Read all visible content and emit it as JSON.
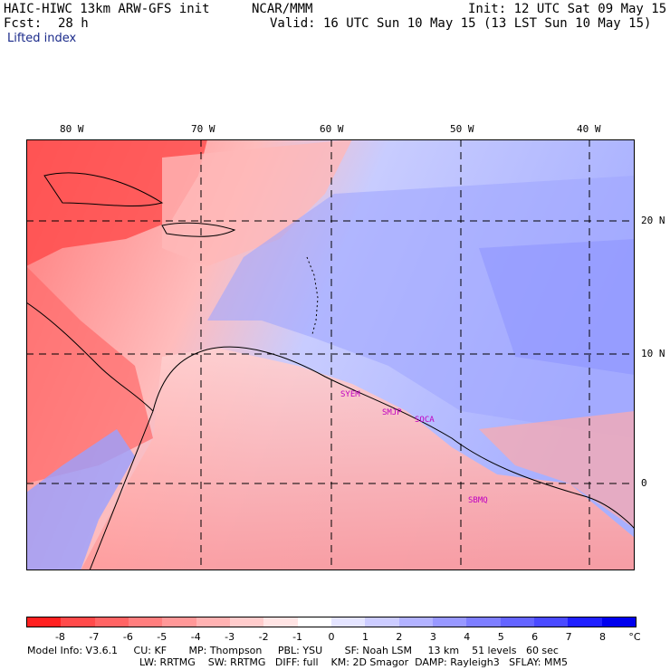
{
  "header": {
    "model": "HAIC-HIWC 13km ARW-GFS init",
    "org": "NCAR/MMM",
    "init": "Init: 12 UTC Sat 09 May 15",
    "fcst_label": "Fcst:",
    "fcst_value": "28 h",
    "valid": "Valid: 16 UTC Sun 10 May 15 (13 LST Sun 10 May 15)",
    "field": "Lifted index"
  },
  "map": {
    "lon_labels": [
      "80 W",
      "70 W",
      "60 W",
      "50 W",
      "40 W"
    ],
    "lat_labels": [
      "20 N",
      "10 N",
      "0"
    ],
    "stations": [
      "SYEM",
      "SMJP",
      "SOCA",
      "SBMQ"
    ]
  },
  "colorbar": {
    "ticks": [
      "-8",
      "-7",
      "-6",
      "-5",
      "-4",
      "-3",
      "-2",
      "-1",
      "0",
      "1",
      "2",
      "3",
      "4",
      "5",
      "6",
      "7",
      "8"
    ],
    "unit": "°C",
    "colors": [
      "#ff2020",
      "#ff4a4a",
      "#ff6464",
      "#ff7e7e",
      "#ff9898",
      "#ffb2b2",
      "#ffcccc",
      "#ffe4e4",
      "#ffffff",
      "#e4e4ff",
      "#ccccff",
      "#b2b2ff",
      "#9898ff",
      "#7e7eff",
      "#6464ff",
      "#4a4aff",
      "#2020ff",
      "#0000ee"
    ]
  },
  "model_info": {
    "line1": "Model Info: V3.6.1     CU: KF       MP: Thompson     PBL: YSU       SF: Noah LSM     13 km    51 levels   60 sec",
    "line2": "LW: RRTMG    SW: RRTMG   DIFF: full    KM: 2D Smagor  DAMP: Rayleigh3   SFLAY: MM5"
  }
}
